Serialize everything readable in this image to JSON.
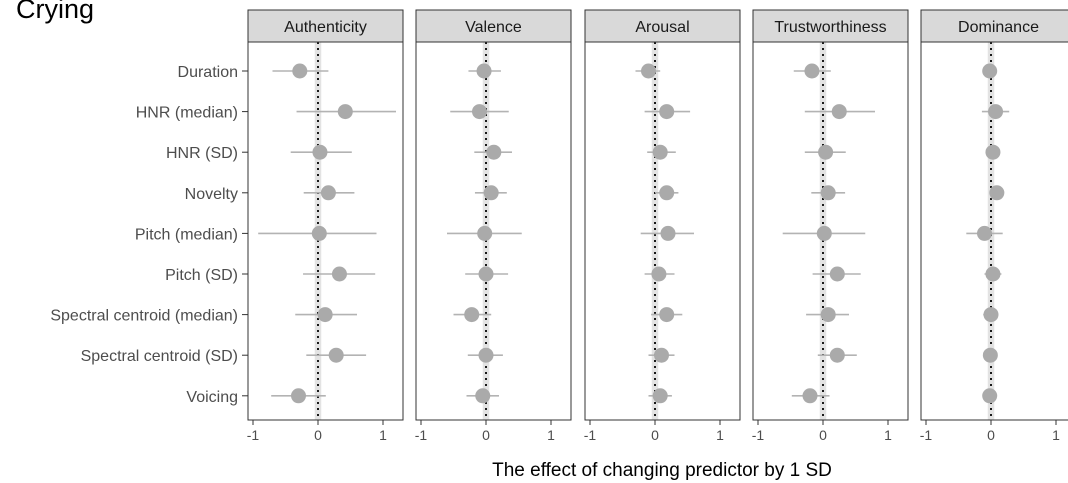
{
  "figure": {
    "title": "Crying",
    "xlabel": "The effect of changing predictor by 1 SD"
  },
  "chart_data": {
    "type": "scatter",
    "subtype": "faceted point-range (coefficient) plot",
    "title": "Crying",
    "xlabel": "The effect of changing predictor by 1 SD",
    "ylabel": "",
    "xlim": [
      -1,
      1
    ],
    "xticks": [
      -1,
      0,
      1
    ],
    "grid": false,
    "reference_line": "dotted vertical line at x = 0",
    "reference_band": [
      -0.05,
      0.05
    ],
    "colors": {
      "point": "#aaaaaa",
      "interval": "#b3b3b3",
      "band": "#e3e3e3",
      "strip": "#d9d9d9"
    },
    "predictors": [
      "Duration",
      "HNR (median)",
      "HNR (SD)",
      "Novelty",
      "Pitch (median)",
      "Pitch (SD)",
      "Spectral centroid (median)",
      "Spectral centroid (SD)",
      "Voicing"
    ],
    "panels": [
      {
        "name": "Authenticity",
        "estimates": [
          -0.28,
          0.42,
          0.03,
          0.16,
          0.02,
          0.33,
          0.11,
          0.28,
          -0.3
        ],
        "lower": [
          -0.7,
          -0.33,
          -0.42,
          -0.22,
          -0.92,
          -0.23,
          -0.35,
          -0.18,
          -0.72
        ],
        "upper": [
          0.16,
          1.2,
          0.52,
          0.56,
          0.9,
          0.88,
          0.6,
          0.74,
          0.12
        ]
      },
      {
        "name": "Valence",
        "estimates": [
          -0.03,
          -0.1,
          0.12,
          0.08,
          -0.02,
          0.0,
          -0.22,
          0.0,
          -0.05
        ],
        "lower": [
          -0.27,
          -0.55,
          -0.18,
          -0.17,
          -0.6,
          -0.32,
          -0.5,
          -0.28,
          -0.3
        ],
        "upper": [
          0.23,
          0.35,
          0.4,
          0.32,
          0.55,
          0.34,
          0.08,
          0.26,
          0.2
        ]
      },
      {
        "name": "Arousal",
        "estimates": [
          -0.1,
          0.18,
          0.08,
          0.18,
          0.2,
          0.06,
          0.18,
          0.1,
          0.08
        ],
        "lower": [
          -0.3,
          -0.16,
          -0.12,
          0.0,
          -0.22,
          -0.16,
          -0.06,
          -0.1,
          -0.1
        ],
        "upper": [
          0.08,
          0.54,
          0.32,
          0.36,
          0.6,
          0.3,
          0.42,
          0.3,
          0.26
        ]
      },
      {
        "name": "Trustworthiness",
        "estimates": [
          -0.17,
          0.25,
          0.04,
          0.08,
          0.02,
          0.22,
          0.08,
          0.22,
          -0.2
        ],
        "lower": [
          -0.45,
          -0.28,
          -0.28,
          -0.18,
          -0.62,
          -0.16,
          -0.26,
          -0.08,
          -0.48
        ],
        "upper": [
          0.12,
          0.8,
          0.35,
          0.34,
          0.65,
          0.58,
          0.4,
          0.52,
          0.1
        ]
      },
      {
        "name": "Dominance",
        "estimates": [
          -0.02,
          0.07,
          0.03,
          0.09,
          -0.1,
          0.03,
          0.0,
          -0.01,
          -0.02
        ],
        "lower": [
          -0.12,
          -0.14,
          -0.08,
          0.0,
          -0.38,
          -0.1,
          -0.12,
          -0.12,
          -0.12
        ],
        "upper": [
          0.08,
          0.28,
          0.14,
          0.18,
          0.18,
          0.16,
          0.11,
          0.1,
          0.08
        ]
      }
    ]
  }
}
